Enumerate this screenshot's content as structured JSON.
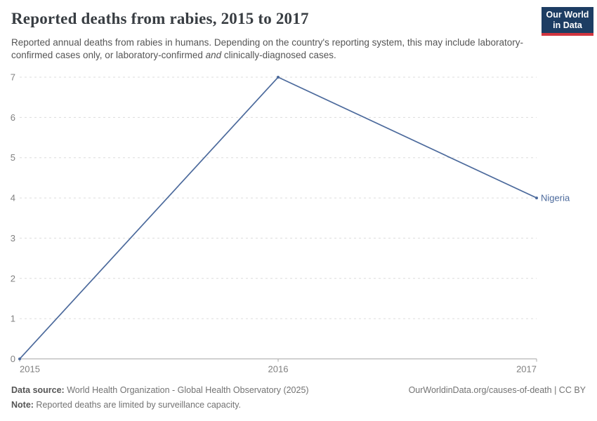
{
  "header": {
    "title": "Reported deaths from rabies, 2015 to 2017",
    "logo": {
      "line1": "Our World",
      "line2": "in Data"
    },
    "subtitle": {
      "part1": "Reported annual deaths from rabies in humans. Depending on the country's reporting system, this may include laboratory-confirmed cases only, or laboratory-confirmed ",
      "italic": "and",
      "part2": " clinically-diagnosed cases."
    }
  },
  "chart_data": {
    "type": "line",
    "title": "Reported deaths from rabies, 2015 to 2017",
    "x": [
      2015,
      2016,
      2017
    ],
    "xticklabels": [
      "2015",
      "2016",
      "2017"
    ],
    "series": [
      {
        "name": "Nigeria",
        "values": [
          0,
          7,
          4
        ],
        "color": "#4C6A9C"
      }
    ],
    "ylim": [
      0,
      7
    ],
    "yticks": [
      0,
      1,
      2,
      3,
      4,
      5,
      6,
      7
    ],
    "xlabel": "",
    "ylabel": "",
    "grid": "dashed-horizontal",
    "legend_position": "end-of-line-label"
  },
  "footer": {
    "data_source_label": "Data source:",
    "data_source_text": " World Health Organization - Global Health Observatory (2025)",
    "note_label": "Note:",
    "note_text": " Reported deaths are limited by surveillance capacity.",
    "attribution": "OurWorldinData.org/causes-of-death | CC BY"
  },
  "colors": {
    "line": "#4C6A9C",
    "grid": "#dcdcdc",
    "axis": "#a8a8a8",
    "tick_text": "#808080",
    "title_text": "#383d42",
    "logo_bg": "#1d3d63",
    "logo_stripe": "#d1353f"
  }
}
